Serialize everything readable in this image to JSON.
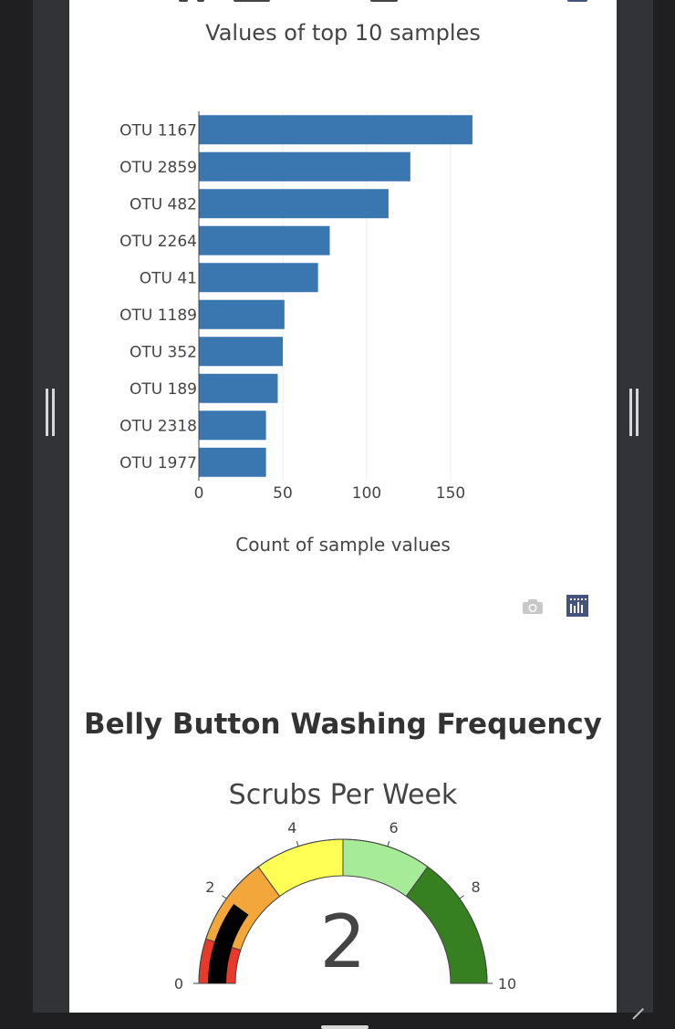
{
  "bar_chart": {
    "title": "Values of top 10 samples",
    "xlabel": "Count of sample values"
  },
  "section": {
    "heading": "Belly Button Washing Frequency"
  },
  "gauge": {
    "title": "Scrubs Per Week",
    "value_label": "2"
  },
  "modebar": {
    "camera_icon": "camera-icon",
    "plotly_icon": "plotly-logo-icon"
  },
  "chart_data": [
    {
      "type": "bar",
      "orientation": "horizontal",
      "title": "Values of top 10 samples",
      "xlabel": "Count of sample values",
      "ylabel": "",
      "categories": [
        "OTU 1167",
        "OTU 2859",
        "OTU 482",
        "OTU 2264",
        "OTU 41",
        "OTU 1189",
        "OTU 352",
        "OTU 189",
        "OTU 2318",
        "OTU 1977"
      ],
      "values": [
        163,
        126,
        113,
        78,
        71,
        51,
        50,
        47,
        40,
        40
      ],
      "x_ticks": [
        "0",
        "50",
        "100",
        "150"
      ],
      "xlim": [
        0,
        180
      ],
      "grid": true,
      "color": "#3a76b0"
    },
    {
      "type": "gauge",
      "title": "Scrubs Per Week",
      "value": 2,
      "range": [
        0,
        10
      ],
      "tick_labels": [
        "0",
        "2",
        "4",
        "6",
        "8",
        "10"
      ],
      "bands": [
        {
          "from": 0,
          "to": 1,
          "color": "#e8392a"
        },
        {
          "from": 1,
          "to": 3,
          "color": "#f3a73b"
        },
        {
          "from": 3,
          "to": 5,
          "color": "#ffff55"
        },
        {
          "from": 5,
          "to": 7,
          "color": "#a6ec98"
        },
        {
          "from": 7,
          "to": 10,
          "color": "#368021"
        }
      ],
      "bar_color": "#000000"
    }
  ]
}
